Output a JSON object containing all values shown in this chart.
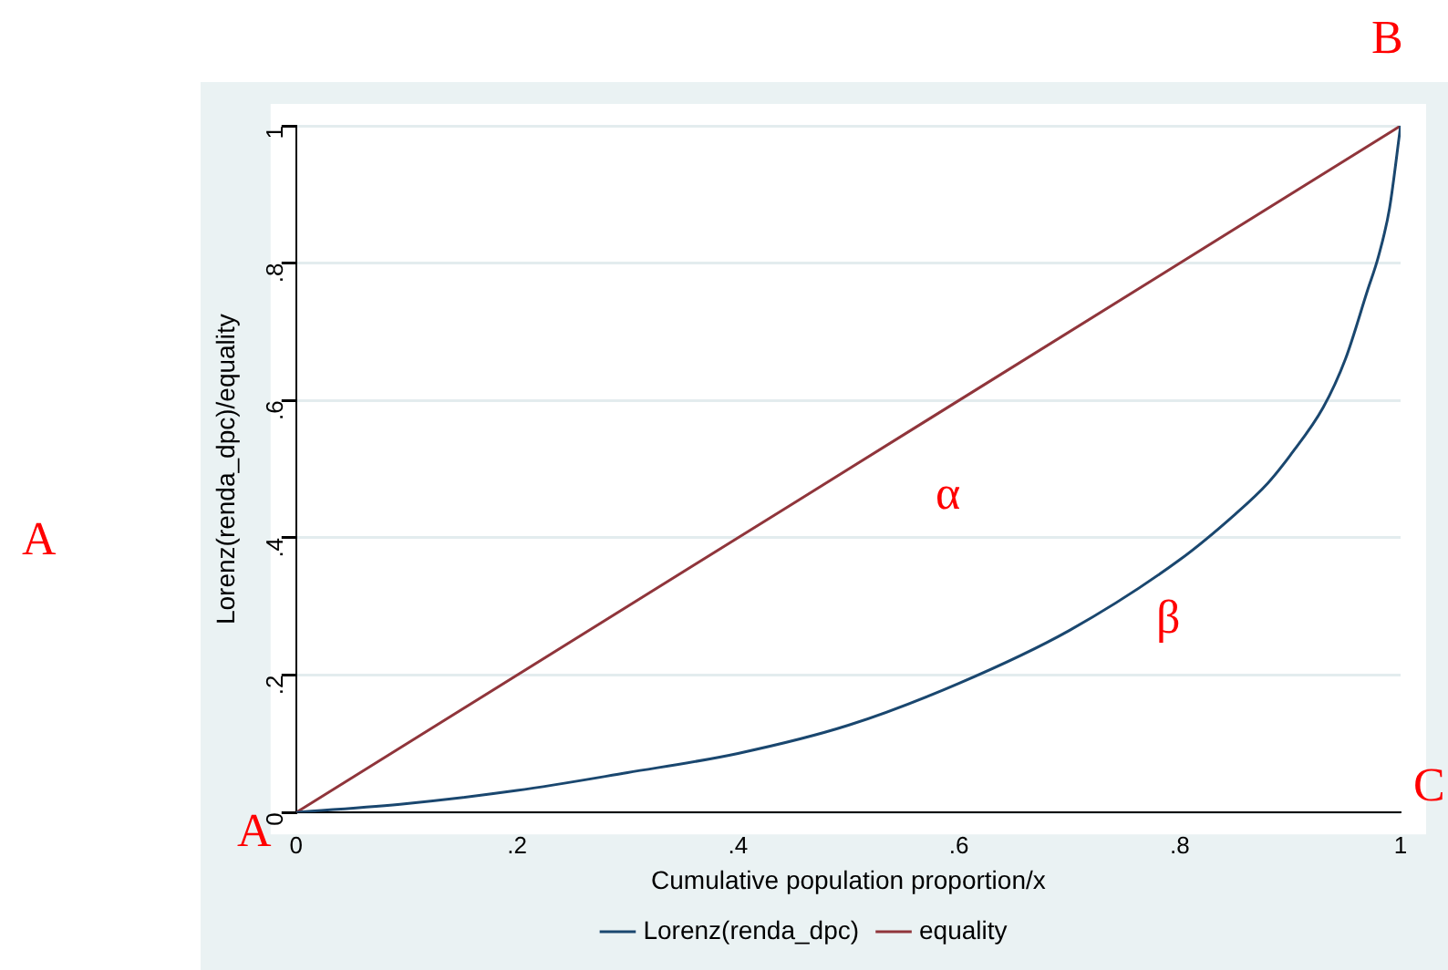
{
  "chart_data": {
    "type": "line",
    "xlabel": "Cumulative population proportion/x",
    "ylabel": "Lorenz(renda_dpc)/equality",
    "series": [
      {
        "name": "Lorenz(renda_dpc)",
        "color": "#1a476f",
        "x": [
          0,
          0.1,
          0.2,
          0.3,
          0.4,
          0.5,
          0.6,
          0.7,
          0.8,
          0.85,
          0.88,
          0.9,
          0.93,
          0.95,
          0.97,
          0.98,
          0.99,
          1
        ],
        "values": [
          0,
          0.013,
          0.032,
          0.058,
          0.086,
          0.127,
          0.188,
          0.265,
          0.368,
          0.434,
          0.48,
          0.52,
          0.59,
          0.66,
          0.76,
          0.81,
          0.88,
          1
        ]
      },
      {
        "name": "equality",
        "color": "#90353b",
        "x": [
          0,
          1
        ],
        "values": [
          0,
          1
        ]
      }
    ],
    "xlim": [
      0,
      1
    ],
    "xticks": [
      0,
      {
        "value": 0.2,
        "label": ".2"
      },
      {
        "value": 0.4,
        "label": ".4"
      },
      {
        "value": 0.6,
        "label": ".6"
      },
      {
        "value": 0.8,
        "label": ".8"
      },
      1
    ],
    "ylim": [
      0,
      1
    ],
    "yticks": [
      0,
      {
        "value": 0.2,
        "label": ".2"
      },
      {
        "value": 0.4,
        "label": ".4"
      },
      {
        "value": 0.6,
        "label": ".6"
      },
      {
        "value": 0.8,
        "label": ".8"
      },
      1
    ],
    "grid": "y",
    "legend": "bottom",
    "marker": "none",
    "line_style": "solid",
    "annotations": [
      "α",
      "β",
      "A",
      "B",
      "C",
      "A"
    ]
  }
}
